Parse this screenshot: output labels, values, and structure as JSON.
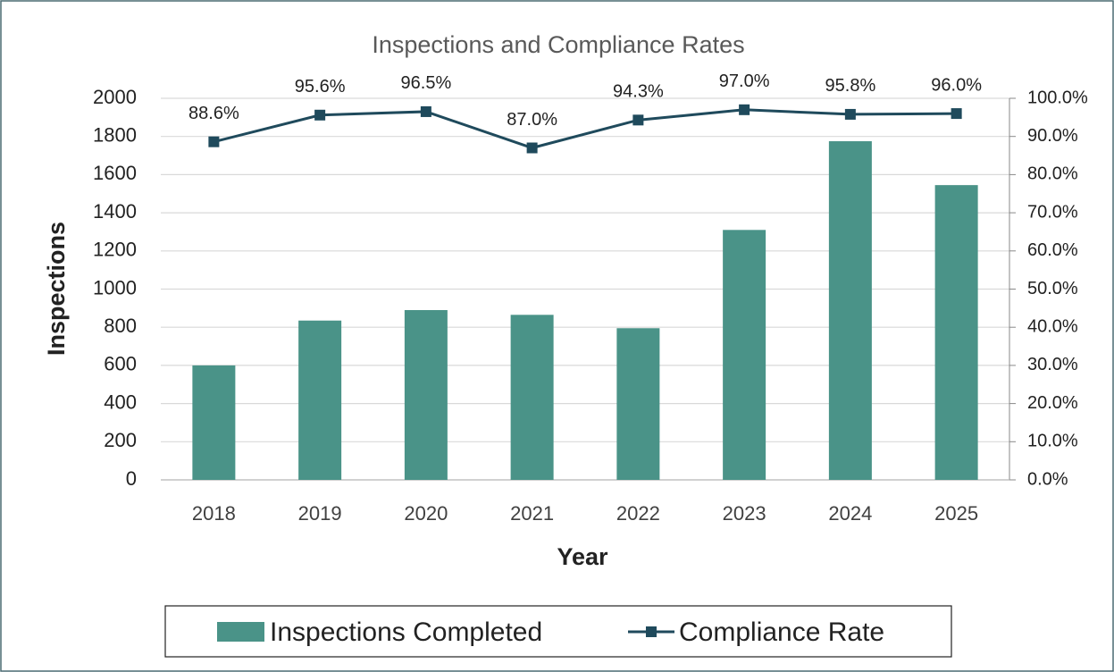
{
  "chart_data": {
    "type": "bar_line",
    "title": "Inspections and Compliance Rates",
    "x_label": "Year",
    "y_label": "Inspections",
    "categories": [
      "2018",
      "2019",
      "2020",
      "2021",
      "2022",
      "2023",
      "2024",
      "2025"
    ],
    "series": [
      {
        "name": "Inspections Completed",
        "type": "bar",
        "color": "#4a9388",
        "values": [
          600,
          835,
          890,
          865,
          795,
          1310,
          1775,
          1545
        ]
      },
      {
        "name": "Compliance Rate",
        "type": "line",
        "axis": "y2",
        "color": "#1f4a5c",
        "values": [
          88.6,
          95.6,
          96.5,
          87.0,
          94.3,
          97.0,
          95.8,
          96.0
        ],
        "value_labels": [
          "88.6%",
          "95.6%",
          "96.5%",
          "87.0%",
          "94.3%",
          "97.0%",
          "95.8%",
          "96.0%"
        ]
      }
    ],
    "ylim": [
      0,
      2000
    ],
    "yticks": [
      0,
      200,
      400,
      600,
      800,
      1000,
      1200,
      1400,
      1600,
      1800,
      2000
    ],
    "y2lim": [
      0,
      100
    ],
    "y2ticks": [
      {
        "value": 0,
        "label": "0.0%"
      },
      {
        "value": 10,
        "label": "10.0%"
      },
      {
        "value": 20,
        "label": "20.0%"
      },
      {
        "value": 30,
        "label": "30.0%"
      },
      {
        "value": 40,
        "label": "40.0%"
      },
      {
        "value": 50,
        "label": "50.0%"
      },
      {
        "value": 60,
        "label": "60.0%"
      },
      {
        "value": 70,
        "label": "70.0%"
      },
      {
        "value": 80,
        "label": "80.0%"
      },
      {
        "value": 90,
        "label": "90.0%"
      },
      {
        "value": 100,
        "label": "100.0%"
      }
    ],
    "grid": true,
    "legend": "bottom"
  }
}
